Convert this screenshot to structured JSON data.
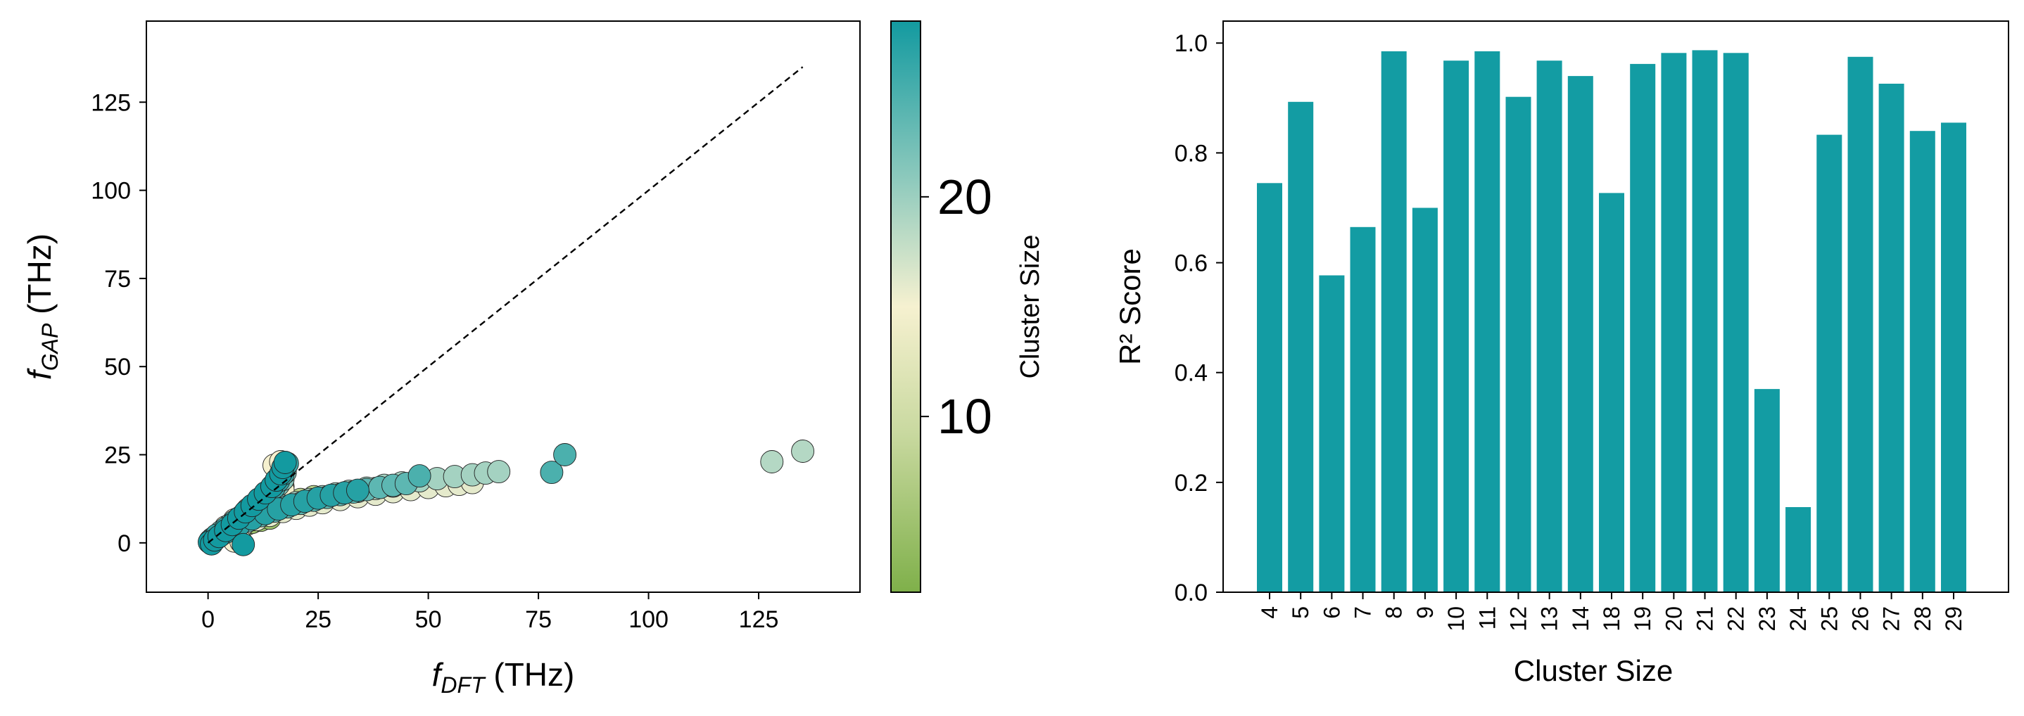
{
  "chart_data": [
    {
      "type": "scatter",
      "xlabel_main": "f",
      "xlabel_sub": "DFT",
      "xlabel_unit": " (THz)",
      "ylabel_main": "f",
      "ylabel_sub": "GAP",
      "ylabel_unit": " (THz)",
      "xlim": [
        -14,
        148
      ],
      "ylim": [
        -14,
        148
      ],
      "x_ticks": [
        0,
        25,
        50,
        75,
        100,
        125
      ],
      "y_ticks": [
        0,
        25,
        50,
        75,
        100,
        125
      ],
      "x_tick_labels": [
        "0",
        "25",
        "50",
        "75",
        "100",
        "125"
      ],
      "y_tick_labels": [
        "0",
        "25",
        "50",
        "75",
        "100",
        "125"
      ],
      "grid": false,
      "reference_line": {
        "style": "dashed",
        "x": [
          0,
          135
        ],
        "y": [
          0,
          135
        ]
      },
      "colorbar": {
        "label": "Cluster Size",
        "range": [
          2,
          28
        ],
        "ticks": [
          10,
          20
        ],
        "tick_labels": [
          "10",
          "20"
        ],
        "colors": [
          "#7fb04a",
          "#d9e2b4",
          "#f5f0cf",
          "#8cc9bd",
          "#139aa0"
        ]
      },
      "series": [
        {
          "cluster_size": 4,
          "points": [
            [
              0.5,
              0.3
            ],
            [
              1,
              0.8
            ],
            [
              2,
              1.6
            ],
            [
              3,
              2.4
            ],
            [
              4,
              3.2
            ],
            [
              5,
              3.6
            ],
            [
              6,
              4.1
            ],
            [
              7,
              4.6
            ],
            [
              8,
              5
            ],
            [
              9,
              5.4
            ],
            [
              10,
              5.8
            ],
            [
              12,
              6.4
            ],
            [
              14,
              7
            ]
          ]
        },
        {
          "cluster_size": 6,
          "points": [
            [
              0.5,
              0.5
            ],
            [
              1.5,
              1.4
            ],
            [
              3,
              2.6
            ],
            [
              5,
              4.3
            ],
            [
              7,
              6
            ],
            [
              9,
              7.3
            ],
            [
              11,
              8.4
            ],
            [
              13,
              9.3
            ],
            [
              15,
              10.2
            ],
            [
              18,
              11.3
            ],
            [
              21,
              12.3
            ],
            [
              24,
              13.1
            ]
          ]
        },
        {
          "cluster_size": 8,
          "points": [
            [
              0.5,
              0.6
            ],
            [
              2,
              2
            ],
            [
              4,
              3.9
            ],
            [
              6,
              5.8
            ],
            [
              8,
              7.7
            ],
            [
              10,
              9.5
            ],
            [
              12,
              11.3
            ],
            [
              14,
              13
            ],
            [
              16,
              14.8
            ],
            [
              17,
              16
            ]
          ]
        },
        {
          "cluster_size": 10,
          "points": [
            [
              1,
              1
            ],
            [
              3,
              3
            ],
            [
              5,
              5
            ],
            [
              7,
              7
            ],
            [
              9,
              8.8
            ],
            [
              11,
              10.7
            ],
            [
              13,
              12.6
            ],
            [
              15,
              14.5
            ],
            [
              16,
              15.5
            ]
          ]
        },
        {
          "cluster_size": 12,
          "points": [
            [
              0.5,
              0.5
            ],
            [
              2,
              1.9
            ],
            [
              4,
              3.7
            ],
            [
              6,
              5.5
            ],
            [
              8,
              7.3
            ],
            [
              10,
              9.1
            ],
            [
              12,
              10.9
            ],
            [
              14,
              12.6
            ],
            [
              16,
              14.2
            ]
          ]
        },
        {
          "cluster_size": 14,
          "points": [
            [
              1,
              0.8
            ],
            [
              3,
              2.7
            ],
            [
              5,
              4.5
            ],
            [
              7,
              6.3
            ],
            [
              9,
              8.1
            ],
            [
              11,
              9.9
            ],
            [
              13,
              11.7
            ],
            [
              15,
              13.4
            ],
            [
              17,
              15.1
            ]
          ]
        },
        {
          "cluster_size": 16,
          "points": [
            [
              2,
              1.5
            ],
            [
              5,
              3.5
            ],
            [
              8,
              5.2
            ],
            [
              11,
              6.6
            ],
            [
              14,
              7.8
            ],
            [
              17,
              8.9
            ],
            [
              20,
              9.8
            ],
            [
              23,
              10.7
            ],
            [
              26,
              11.4
            ],
            [
              30,
              12.3
            ],
            [
              34,
              13.1
            ],
            [
              38,
              13.8
            ],
            [
              42,
              14.5
            ],
            [
              46,
              15.1
            ],
            [
              50,
              15.7
            ],
            [
              54,
              16.2
            ],
            [
              57,
              16.6
            ],
            [
              60,
              17.1
            ]
          ]
        },
        {
          "cluster_size": 15,
          "points": [
            [
              6,
              0.5
            ],
            [
              7.5,
              0.3
            ],
            [
              4,
              4.5
            ],
            [
              6,
              6.5
            ],
            [
              9,
              9.5
            ],
            [
              12,
              12.5
            ],
            [
              15,
              16
            ],
            [
              16.5,
              19
            ],
            [
              15,
              22
            ],
            [
              16.5,
              23
            ]
          ]
        },
        {
          "cluster_size": 18,
          "points": [
            [
              1,
              1
            ],
            [
              3,
              2.5
            ],
            [
              6,
              4.5
            ],
            [
              9,
              6.3
            ],
            [
              12,
              7.8
            ],
            [
              15,
              9.1
            ],
            [
              18,
              10.3
            ],
            [
              21,
              11.3
            ],
            [
              24,
              12.2
            ],
            [
              27,
              13
            ],
            [
              30,
              13.8
            ],
            [
              34,
              14.6
            ],
            [
              38,
              15.4
            ],
            [
              42,
              16.1
            ]
          ]
        },
        {
          "cluster_size": 20,
          "points": [
            [
              2,
              1.8
            ],
            [
              5,
              4.2
            ],
            [
              8,
              6.2
            ],
            [
              11,
              7.8
            ],
            [
              14,
              9.1
            ],
            [
              17,
              10.3
            ],
            [
              20,
              11.4
            ],
            [
              23,
              12.3
            ],
            [
              26,
              13.1
            ],
            [
              29,
              13.9
            ],
            [
              32,
              14.6
            ],
            [
              36,
              15.5
            ],
            [
              40,
              16.3
            ],
            [
              44,
              17
            ],
            [
              48,
              17.6
            ],
            [
              52,
              18.2
            ],
            [
              56,
              18.8
            ],
            [
              60,
              19.3
            ],
            [
              63,
              19.8
            ],
            [
              66,
              20.2
            ]
          ]
        },
        {
          "cluster_size": 19,
          "points": [
            [
              128,
              23
            ],
            [
              135,
              26
            ]
          ]
        },
        {
          "cluster_size": 22,
          "points": [
            [
              1,
              1.2
            ],
            [
              3,
              3.2
            ],
            [
              5,
              5.1
            ],
            [
              7,
              7
            ],
            [
              9,
              8.9
            ],
            [
              11,
              10.8
            ],
            [
              13,
              12.6
            ],
            [
              15,
              14.5
            ],
            [
              16,
              16.5
            ],
            [
              17,
              18
            ],
            [
              17.5,
              20
            ]
          ]
        },
        {
          "cluster_size": 24,
          "points": [
            [
              3,
              2.3
            ],
            [
              6,
              4.4
            ],
            [
              9,
              6.2
            ],
            [
              12,
              7.7
            ],
            [
              15,
              9
            ],
            [
              18,
              10.2
            ],
            [
              21,
              11.2
            ],
            [
              24,
              12.1
            ],
            [
              27,
              12.9
            ],
            [
              30,
              13.7
            ],
            [
              33,
              14.4
            ],
            [
              36,
              15.1
            ],
            [
              39,
              15.7
            ],
            [
              42,
              16.3
            ],
            [
              45,
              16.8
            ]
          ]
        },
        {
          "cluster_size": 25,
          "points": [
            [
              78,
              20
            ],
            [
              81,
              25
            ],
            [
              48,
              19
            ]
          ]
        },
        {
          "cluster_size": 26,
          "points": [
            [
              0.5,
              0.6
            ],
            [
              2,
              2.2
            ],
            [
              4,
              4.1
            ],
            [
              6,
              6.1
            ],
            [
              8,
              8
            ],
            [
              10,
              9.9
            ],
            [
              12,
              11.8
            ],
            [
              14,
              13.8
            ],
            [
              15,
              15.7
            ],
            [
              16,
              17.6
            ],
            [
              17,
              19.5
            ],
            [
              17.5,
              21.5
            ],
            [
              18,
              22.5
            ]
          ]
        },
        {
          "cluster_size": 27,
          "points": [
            [
              4,
              3
            ],
            [
              7,
              5
            ],
            [
              10,
              6.8
            ],
            [
              13,
              8.3
            ],
            [
              16,
              9.6
            ],
            [
              19,
              10.8
            ],
            [
              22,
              11.8
            ],
            [
              25,
              12.7
            ],
            [
              28,
              13.5
            ],
            [
              31,
              14.2
            ],
            [
              34,
              14.9
            ]
          ]
        },
        {
          "cluster_size": 28,
          "points": [
            [
              0.3,
              0.2
            ],
            [
              0.8,
              -0.3
            ],
            [
              1.5,
              0.8
            ],
            [
              2.5,
              1.8
            ],
            [
              4,
              3.5
            ],
            [
              5.5,
              5.2
            ],
            [
              7,
              7
            ],
            [
              8.5,
              8.8
            ],
            [
              10,
              10.6
            ],
            [
              11.5,
              12.4
            ],
            [
              13,
              14.2
            ],
            [
              14.5,
              16
            ],
            [
              15.5,
              17.8
            ],
            [
              16.5,
              19.6
            ],
            [
              17,
              21.4
            ],
            [
              17.5,
              22.8
            ],
            [
              8,
              -0.5
            ]
          ]
        }
      ]
    },
    {
      "type": "bar",
      "xlabel": "Cluster Size",
      "ylabel": "R² Score",
      "ylim": [
        0,
        1.04
      ],
      "y_ticks": [
        0,
        0.2,
        0.4,
        0.6,
        0.8,
        1.0
      ],
      "y_tick_labels": [
        "0.0",
        "0.2",
        "0.4",
        "0.6",
        "0.8",
        "1.0"
      ],
      "grid": false,
      "bar_color": "#139ca3",
      "categories": [
        "4",
        "5",
        "6",
        "7",
        "8",
        "9",
        "10",
        "11",
        "12",
        "13",
        "14",
        "18",
        "19",
        "20",
        "21",
        "22",
        "23",
        "24",
        "25",
        "26",
        "27",
        "28",
        "29"
      ],
      "values": [
        0.745,
        0.893,
        0.577,
        0.665,
        0.985,
        0.7,
        0.968,
        0.985,
        0.902,
        0.968,
        0.94,
        0.727,
        0.962,
        0.982,
        0.987,
        0.982,
        0.37,
        0.155,
        0.833,
        0.975,
        0.926,
        0.84,
        0.855
      ]
    }
  ]
}
